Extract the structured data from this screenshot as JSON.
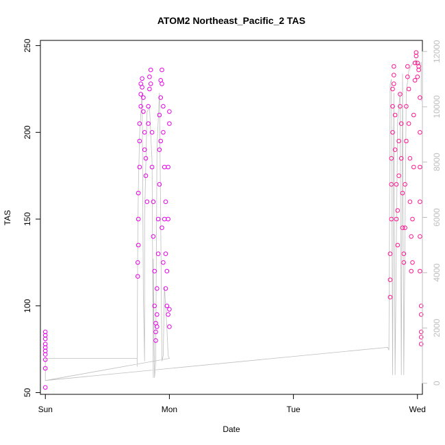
{
  "chart_data": {
    "type": "scatter",
    "title": "ATOM2 Northeast_Pacific_2 TAS",
    "xlabel": "Date",
    "ylabel": "TAS",
    "x_ticks": [
      "Sun",
      "Mon",
      "Tue",
      "Wed"
    ],
    "x_tick_days": [
      0,
      1,
      2,
      3
    ],
    "xlim": [
      -0.04,
      3.04
    ],
    "ylim": [
      49,
      253
    ],
    "y_ticks": [
      50,
      100,
      150,
      200,
      250
    ],
    "y2_ticks": [
      0,
      2000,
      4000,
      6000,
      8000,
      10000,
      12000
    ],
    "y2lim": [
      -400,
      12400
    ],
    "grid": false,
    "colors": {
      "tas_points_day1": "#e600e6",
      "tas_points_day2": "#ff1493",
      "altitude_line": "#bebebe",
      "right_axis": "#bdbdbd"
    },
    "series": [
      {
        "points": [
          [
            0.0,
            53
          ],
          [
            0.0,
            64
          ],
          [
            0.0,
            69
          ],
          [
            0.0,
            72
          ],
          [
            0.0,
            74
          ],
          [
            0.0,
            76
          ],
          [
            0.0,
            78
          ],
          [
            0.0,
            81
          ],
          [
            0.0,
            83
          ],
          [
            0.0,
            85
          ],
          [
            0.745,
            117
          ],
          [
            0.745,
            125
          ],
          [
            0.75,
            135
          ],
          [
            0.75,
            150
          ],
          [
            0.75,
            165
          ],
          [
            0.76,
            180
          ],
          [
            0.76,
            195
          ],
          [
            0.76,
            205
          ],
          [
            0.77,
            215
          ],
          [
            0.77,
            222
          ],
          [
            0.77,
            228
          ],
          [
            0.78,
            231
          ],
          [
            0.78,
            226
          ],
          [
            0.79,
            220
          ],
          [
            0.79,
            212
          ],
          [
            0.8,
            200
          ],
          [
            0.8,
            190
          ],
          [
            0.81,
            185
          ],
          [
            0.81,
            175
          ],
          [
            0.82,
            160
          ],
          [
            0.83,
            205
          ],
          [
            0.83,
            215
          ],
          [
            0.84,
            225
          ],
          [
            0.84,
            232
          ],
          [
            0.85,
            236
          ],
          [
            0.85,
            228
          ],
          [
            0.86,
            200
          ],
          [
            0.86,
            180
          ],
          [
            0.87,
            160
          ],
          [
            0.87,
            140
          ],
          [
            0.88,
            120
          ],
          [
            0.88,
            100
          ],
          [
            0.89,
            90
          ],
          [
            0.89,
            85
          ],
          [
            0.9,
            95
          ],
          [
            0.9,
            110
          ],
          [
            0.91,
            130
          ],
          [
            0.91,
            150
          ],
          [
            0.92,
            170
          ],
          [
            0.92,
            190
          ],
          [
            0.93,
            195
          ],
          [
            0.92,
            210
          ],
          [
            0.93,
            220
          ],
          [
            0.93,
            230
          ],
          [
            0.94,
            236
          ],
          [
            0.94,
            228
          ],
          [
            0.95,
            215
          ],
          [
            0.95,
            200
          ],
          [
            0.96,
            180
          ],
          [
            0.96,
            150
          ],
          [
            0.97,
            130
          ],
          [
            0.97,
            110
          ],
          [
            0.98,
            100
          ],
          [
            0.98,
            120
          ],
          [
            0.99,
            150
          ],
          [
            0.99,
            180
          ],
          [
            1.0,
            205
          ],
          [
            1.0,
            212
          ],
          [
            0.89,
            80
          ],
          [
            0.9,
            88
          ],
          [
            0.94,
            145
          ],
          [
            0.95,
            125
          ],
          [
            0.97,
            160
          ],
          [
            0.99,
            95
          ],
          [
            1.0,
            98
          ],
          [
            1.0,
            88
          ]
        ]
      },
      {
        "points": [
          [
            2.78,
            105
          ],
          [
            2.78,
            115
          ],
          [
            2.78,
            130
          ],
          [
            2.79,
            150
          ],
          [
            2.79,
            170
          ],
          [
            2.79,
            185
          ],
          [
            2.8,
            200
          ],
          [
            2.8,
            215
          ],
          [
            2.8,
            225
          ],
          [
            2.81,
            233
          ],
          [
            2.81,
            238
          ],
          [
            2.81,
            228
          ],
          [
            2.82,
            210
          ],
          [
            2.82,
            190
          ],
          [
            2.83,
            170
          ],
          [
            2.83,
            150
          ],
          [
            2.84,
            135
          ],
          [
            2.84,
            155
          ],
          [
            2.85,
            175
          ],
          [
            2.85,
            195
          ],
          [
            2.86,
            215
          ],
          [
            2.86,
            222
          ],
          [
            2.87,
            205
          ],
          [
            2.87,
            185
          ],
          [
            2.88,
            165
          ],
          [
            2.88,
            145
          ],
          [
            2.89,
            130
          ],
          [
            2.89,
            125
          ],
          [
            2.9,
            145
          ],
          [
            2.9,
            170
          ],
          [
            2.91,
            195
          ],
          [
            2.91,
            215
          ],
          [
            2.92,
            232
          ],
          [
            2.92,
            238
          ],
          [
            2.93,
            225
          ],
          [
            2.93,
            205
          ],
          [
            2.94,
            185
          ],
          [
            2.94,
            160
          ],
          [
            2.95,
            140
          ],
          [
            2.95,
            120
          ],
          [
            2.96,
            125
          ],
          [
            2.96,
            150
          ],
          [
            2.97,
            180
          ],
          [
            2.97,
            210
          ],
          [
            2.98,
            230
          ],
          [
            2.98,
            240
          ],
          [
            2.99,
            244
          ],
          [
            2.99,
            246
          ],
          [
            3.0,
            240
          ],
          [
            3.0,
            232
          ],
          [
            3.01,
            236
          ],
          [
            3.01,
            238
          ],
          [
            3.02,
            220
          ],
          [
            3.02,
            200
          ],
          [
            3.02,
            180
          ],
          [
            3.02,
            160
          ],
          [
            3.02,
            140
          ],
          [
            3.02,
            120
          ],
          [
            3.03,
            100
          ],
          [
            3.03,
            85
          ],
          [
            3.03,
            78
          ],
          [
            3.03,
            82
          ],
          [
            3.03,
            95
          ]
        ]
      }
    ],
    "altitude_line": {
      "points": [
        [
          0.0,
          100
        ],
        [
          0.0,
          900
        ],
        [
          0.74,
          900
        ],
        [
          0.74,
          600
        ],
        [
          0.745,
          5200
        ],
        [
          0.75,
          7000
        ],
        [
          0.76,
          9000
        ],
        [
          0.78,
          10500
        ],
        [
          0.79,
          3200
        ],
        [
          0.8,
          800
        ],
        [
          0.8,
          1000
        ],
        [
          0.8,
          6000
        ],
        [
          0.82,
          9800
        ],
        [
          0.84,
          10000
        ],
        [
          0.86,
          8000
        ],
        [
          0.87,
          200
        ],
        [
          0.87,
          4500
        ],
        [
          0.88,
          200
        ],
        [
          0.89,
          800
        ],
        [
          0.9,
          8500
        ],
        [
          0.92,
          10500
        ],
        [
          0.93,
          6000
        ],
        [
          0.94,
          800
        ],
        [
          0.95,
          1000
        ],
        [
          0.96,
          3500
        ],
        [
          0.98,
          2000
        ],
        [
          0.99,
          1000
        ],
        [
          1.0,
          900
        ],
        [
          0.0,
          100
        ],
        [
          2.76,
          1300
        ],
        [
          2.77,
          1200
        ],
        [
          2.78,
          10800
        ],
        [
          2.79,
          11000
        ],
        [
          2.8,
          300
        ],
        [
          2.81,
          10500
        ],
        [
          2.82,
          300
        ],
        [
          2.84,
          9500
        ],
        [
          2.86,
          10500
        ],
        [
          2.87,
          300
        ],
        [
          2.88,
          11200
        ],
        [
          2.89,
          300
        ],
        [
          2.91,
          10500
        ],
        [
          2.93,
          11300
        ],
        [
          2.95,
          11500
        ],
        [
          2.97,
          11600
        ],
        [
          2.99,
          11700
        ],
        [
          3.01,
          11500
        ],
        [
          3.03,
          11600
        ],
        [
          3.03,
          10200
        ]
      ]
    }
  }
}
